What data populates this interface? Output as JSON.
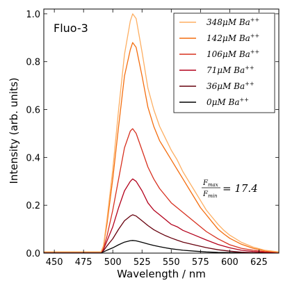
{
  "chart_data": {
    "type": "line",
    "title": "Fluo-3",
    "xlabel": "Wavelength / nm",
    "ylabel": "Intensity (arb. units)",
    "xlim": [
      441,
      642
    ],
    "ylim": [
      0,
      1.02
    ],
    "xticks": [
      450,
      475,
      500,
      525,
      550,
      575,
      600,
      625
    ],
    "yticks": [
      "0.0",
      "0.2",
      "0.4",
      "0.6",
      "0.8",
      "1.0"
    ],
    "legend_position": "top-right",
    "grid": false,
    "annotation": {
      "numerator": "F",
      "numerator_sub": "max",
      "denominator": "F",
      "denominator_sub": "min",
      "value": "= 17.4"
    },
    "series": [
      {
        "conc": "348",
        "unit": "μM",
        "ion": "Ba",
        "charge": "++",
        "color": "#fdae61",
        "x": [
          441,
          490,
          492,
          495,
          500,
          505,
          510,
          515,
          517,
          520,
          525,
          530,
          535,
          540,
          545,
          550,
          555,
          560,
          565,
          570,
          575,
          580,
          585,
          590,
          595,
          600,
          610,
          620,
          630,
          642
        ],
        "y": [
          0.005,
          0.005,
          0.03,
          0.14,
          0.35,
          0.6,
          0.83,
          0.97,
          1.0,
          0.98,
          0.84,
          0.69,
          0.6,
          0.53,
          0.48,
          0.43,
          0.39,
          0.34,
          0.3,
          0.26,
          0.22,
          0.18,
          0.15,
          0.12,
          0.095,
          0.075,
          0.045,
          0.025,
          0.012,
          0.005
        ]
      },
      {
        "conc": "142",
        "unit": "μM",
        "ion": "Ba",
        "charge": "++",
        "color": "#f46d0e",
        "x": [
          441,
          490,
          492,
          495,
          500,
          505,
          510,
          515,
          517,
          520,
          525,
          530,
          535,
          540,
          545,
          550,
          555,
          560,
          565,
          570,
          575,
          580,
          585,
          590,
          595,
          600,
          610,
          620,
          630,
          642
        ],
        "y": [
          0.005,
          0.005,
          0.03,
          0.12,
          0.31,
          0.53,
          0.74,
          0.85,
          0.88,
          0.86,
          0.74,
          0.61,
          0.53,
          0.47,
          0.43,
          0.39,
          0.35,
          0.31,
          0.27,
          0.23,
          0.19,
          0.16,
          0.13,
          0.1,
          0.08,
          0.062,
          0.037,
          0.02,
          0.01,
          0.004
        ]
      },
      {
        "conc": "106",
        "unit": "μM",
        "ion": "Ba",
        "charge": "++",
        "color": "#d7301f",
        "x": [
          441,
          490,
          492,
          495,
          500,
          505,
          510,
          515,
          517,
          520,
          525,
          530,
          535,
          540,
          545,
          550,
          555,
          560,
          565,
          570,
          575,
          580,
          590,
          600,
          610,
          620,
          630,
          642
        ],
        "y": [
          0.005,
          0.005,
          0.02,
          0.07,
          0.18,
          0.31,
          0.44,
          0.51,
          0.52,
          0.5,
          0.43,
          0.36,
          0.31,
          0.27,
          0.24,
          0.21,
          0.19,
          0.17,
          0.15,
          0.13,
          0.11,
          0.09,
          0.06,
          0.035,
          0.02,
          0.012,
          0.006,
          0.003
        ]
      },
      {
        "conc": "71",
        "unit": "μM",
        "ion": "Ba",
        "charge": "++",
        "color": "#b3001b",
        "x": [
          441,
          490,
          492,
          495,
          500,
          505,
          510,
          515,
          517,
          520,
          525,
          530,
          535,
          540,
          545,
          550,
          555,
          560,
          570,
          580,
          590,
          600,
          610,
          620,
          630,
          642
        ],
        "y": [
          0.005,
          0.005,
          0.015,
          0.05,
          0.11,
          0.19,
          0.26,
          0.3,
          0.31,
          0.3,
          0.26,
          0.21,
          0.18,
          0.16,
          0.14,
          0.12,
          0.11,
          0.095,
          0.075,
          0.055,
          0.036,
          0.022,
          0.012,
          0.007,
          0.004,
          0.002
        ]
      },
      {
        "conc": "36",
        "unit": "μM",
        "ion": "Ba",
        "charge": "++",
        "color": "#67000d",
        "x": [
          441,
          490,
          492,
          495,
          500,
          505,
          510,
          515,
          517,
          520,
          525,
          530,
          535,
          540,
          545,
          550,
          555,
          560,
          570,
          580,
          590,
          600,
          610,
          620,
          642
        ],
        "y": [
          0.003,
          0.003,
          0.01,
          0.03,
          0.06,
          0.1,
          0.135,
          0.155,
          0.16,
          0.155,
          0.135,
          0.115,
          0.098,
          0.085,
          0.073,
          0.063,
          0.054,
          0.046,
          0.034,
          0.023,
          0.014,
          0.008,
          0.004,
          0.002,
          0.001
        ]
      },
      {
        "conc": "0",
        "unit": "μM",
        "ion": "Ba",
        "charge": "++",
        "color": "#000000",
        "x": [
          441,
          490,
          492,
          495,
          500,
          505,
          510,
          515,
          517,
          520,
          525,
          530,
          535,
          540,
          545,
          550,
          560,
          570,
          580,
          590,
          600,
          642
        ],
        "y": [
          0.002,
          0.002,
          0.005,
          0.012,
          0.022,
          0.035,
          0.046,
          0.052,
          0.053,
          0.051,
          0.045,
          0.038,
          0.032,
          0.027,
          0.022,
          0.018,
          0.012,
          0.008,
          0.005,
          0.003,
          0.002,
          0.001
        ]
      }
    ]
  }
}
